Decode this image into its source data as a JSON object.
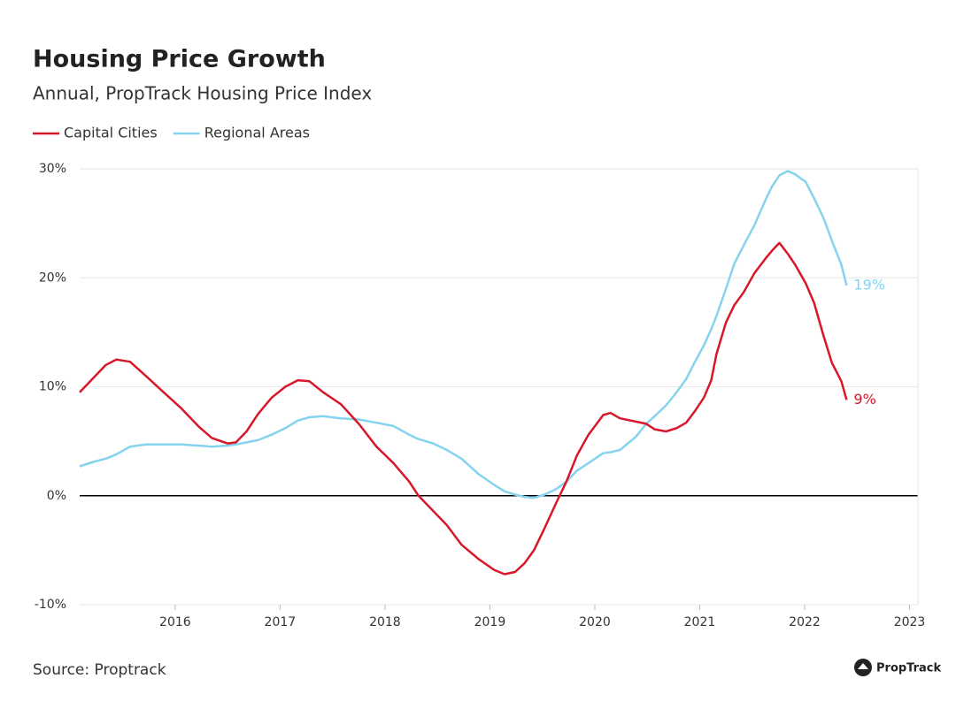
{
  "chart_data": {
    "type": "line",
    "title": "Housing Price Growth",
    "subtitle": "Annual, PropTrack Housing Price Index",
    "source": "Source: Proptrack",
    "logo": "PropTrack",
    "xlim": [
      2015.09,
      2023.08
    ],
    "xticks": [
      2016,
      2017,
      2018,
      2019,
      2020,
      2021,
      2022,
      2023
    ],
    "ylim": [
      -10,
      30
    ],
    "yticks": [
      {
        "value": -10,
        "label": "-10%"
      },
      {
        "value": 0,
        "label": "0%"
      },
      {
        "value": 10,
        "label": "10%"
      },
      {
        "value": 20,
        "label": "20%"
      },
      {
        "value": 30,
        "label": "30%"
      }
    ],
    "grid": true,
    "legend": "top-left",
    "x": [
      2015.09,
      2015.22,
      2015.34,
      2015.44,
      2015.57,
      2015.72,
      2015.89,
      2016.06,
      2016.23,
      2016.35,
      2016.5,
      2016.58,
      2016.68,
      2016.79,
      2016.92,
      2017.05,
      2017.17,
      2017.28,
      2017.41,
      2017.58,
      2017.75,
      2017.92,
      2018.08,
      2018.23,
      2018.32,
      2018.46,
      2018.59,
      2018.73,
      2018.89,
      2019.04,
      2019.14,
      2019.24,
      2019.33,
      2019.42,
      2019.52,
      2019.63,
      2019.73,
      2019.83,
      2019.94,
      2020.08,
      2020.15,
      2020.24,
      2020.39,
      2020.49,
      2020.57,
      2020.68,
      2020.78,
      2020.87,
      2020.95,
      2021.04,
      2021.11,
      2021.16,
      2021.25,
      2021.33,
      2021.42,
      2021.52,
      2021.63,
      2021.69,
      2021.76,
      2021.84,
      2021.91,
      2022.01,
      2022.09,
      2022.18,
      2022.26,
      2022.35,
      2022.4
    ],
    "series": [
      {
        "name": "Capital Cities",
        "color": "#d7182a",
        "end_label": "9%",
        "values": [
          9.5,
          10.8,
          12.0,
          12.5,
          12.3,
          11.0,
          9.5,
          8.0,
          6.3,
          5.3,
          4.8,
          4.9,
          5.9,
          7.5,
          9.0,
          10.0,
          10.6,
          10.5,
          9.5,
          8.4,
          6.6,
          4.5,
          3.0,
          1.3,
          0,
          -1.4,
          -2.7,
          -4.5,
          -5.8,
          -6.8,
          -7.2,
          -7.0,
          -6.2,
          -5.0,
          -3.0,
          -0.7,
          1.3,
          3.7,
          5.6,
          7.4,
          7.6,
          7.1,
          6.8,
          6.6,
          6.1,
          5.9,
          6.2,
          6.7,
          7.7,
          9.0,
          10.6,
          13.0,
          15.9,
          17.5,
          18.7,
          20.4,
          21.8,
          22.5,
          23.2,
          22.2,
          21.2,
          19.5,
          17.7,
          14.7,
          12.2,
          10.5,
          8.8
        ]
      },
      {
        "name": "Regional Areas",
        "color": "#85d3ef",
        "end_label": "19%",
        "values": [
          2.7,
          3.1,
          3.4,
          3.8,
          4.5,
          4.7,
          4.7,
          4.7,
          4.6,
          4.5,
          4.6,
          4.7,
          4.9,
          5.1,
          5.6,
          6.2,
          6.9,
          7.2,
          7.3,
          7.1,
          7.0,
          6.7,
          6.4,
          5.6,
          5.2,
          4.8,
          4.2,
          3.4,
          2.0,
          1.0,
          0.4,
          0.1,
          -0.1,
          -0.2,
          0.1,
          0.6,
          1.3,
          2.3,
          3.0,
          3.9,
          4.0,
          4.2,
          5.4,
          6.6,
          7.3,
          8.3,
          9.5,
          10.7,
          12.2,
          13.8,
          15.3,
          16.5,
          19.0,
          21.3,
          23.0,
          24.8,
          27.2,
          28.4,
          29.4,
          29.8,
          29.5,
          28.8,
          27.3,
          25.5,
          23.4,
          21.2,
          19.3
        ]
      }
    ]
  }
}
